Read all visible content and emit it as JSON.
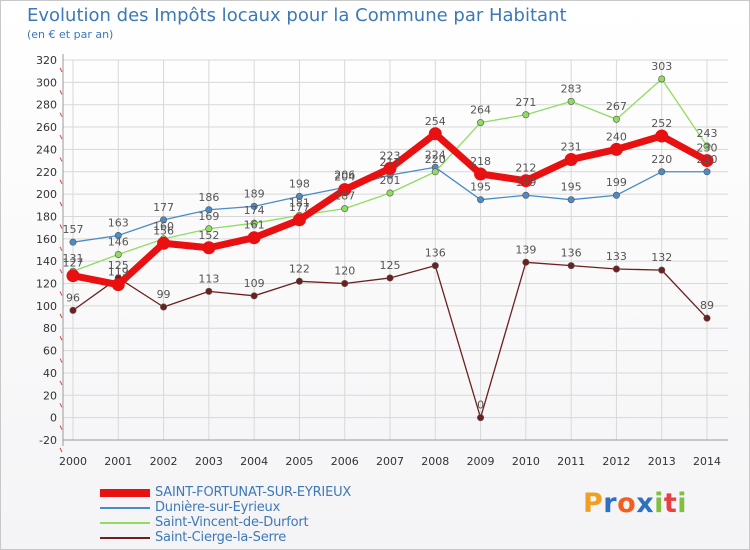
{
  "chart_data": {
    "type": "line",
    "title": "Evolution des Impôts locaux pour la Commune par Habitant",
    "subtitle": "(en € et par an)",
    "xlabel": "",
    "ylabel": "",
    "ylim": [
      -20,
      320
    ],
    "yticks": [
      -20,
      0,
      20,
      40,
      60,
      80,
      100,
      120,
      140,
      160,
      180,
      200,
      220,
      240,
      260,
      280,
      300,
      320
    ],
    "grid": true,
    "legend_position": "bottom-left",
    "x": [
      "2000",
      "2001",
      "2002",
      "2003",
      "2004",
      "2005",
      "2006",
      "2007",
      "2008",
      "2009",
      "2010",
      "2011",
      "2012",
      "2013",
      "2014"
    ],
    "series": [
      {
        "name": "SAINT-FORTUNAT-SUR-EYRIEUX",
        "color": "#e81010",
        "values": [
          127,
          119,
          156,
          152,
          161,
          177,
          204,
          223,
          254,
          218,
          212,
          231,
          240,
          252,
          230
        ],
        "labels": [
          "127",
          "119",
          "156",
          "152",
          "161",
          "177",
          "204",
          "223",
          "254",
          "218",
          "212",
          "231",
          "240",
          "252",
          "230"
        ]
      },
      {
        "name": "Dunière-sur-Eyrieux",
        "color": "#4a8cc8",
        "values": [
          157,
          163,
          177,
          186,
          189,
          198,
          206,
          217,
          224,
          195,
          199,
          195,
          199,
          220,
          220
        ],
        "labels": [
          "157",
          "163",
          "177",
          "186",
          "189",
          "198",
          "206",
          "217",
          "224",
          "195",
          "199",
          "195",
          "199",
          "220",
          "220"
        ]
      },
      {
        "name": "Saint-Vincent-de-Durfort",
        "color": "#90dc60",
        "values": [
          131,
          146,
          160,
          169,
          174,
          181,
          187,
          201,
          220,
          264,
          271,
          283,
          267,
          303,
          243
        ],
        "labels": [
          "131",
          "146",
          "160",
          "169",
          "174",
          "181",
          "187",
          "201",
          "220",
          "264",
          "271",
          "283",
          "267",
          "303",
          "243"
        ]
      },
      {
        "name": "Saint-Cierge-la-Serre",
        "color": "#6e2020",
        "values": [
          96,
          125,
          99,
          113,
          109,
          122,
          120,
          125,
          136,
          0,
          139,
          136,
          133,
          132,
          89
        ],
        "labels": [
          "96",
          "125",
          "99",
          "113",
          "109",
          "122",
          "120",
          "125",
          "136",
          "0",
          "139",
          "136",
          "133",
          "132",
          "89"
        ]
      }
    ]
  },
  "brand": {
    "logo_letters": [
      "P",
      "r",
      "o",
      "x",
      "i",
      "t",
      "i"
    ],
    "logo_colors": [
      "#f0a020",
      "#3070c0",
      "#f06020",
      "#3070c0",
      "#80c040",
      "#e84040",
      "#80c040"
    ]
  }
}
